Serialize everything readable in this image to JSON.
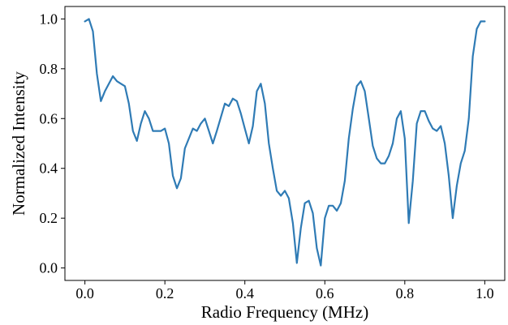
{
  "chart_data": {
    "type": "line",
    "xlabel": "Radio Frequency (MHz)",
    "ylabel": "Normalized Intensity",
    "xlim": [
      -0.05,
      1.05
    ],
    "ylim": [
      -0.05,
      1.05
    ],
    "x_ticks": [
      0.0,
      0.2,
      0.4,
      0.6,
      0.8,
      1.0
    ],
    "x_tick_labels": [
      "0.0",
      "0.2",
      "0.4",
      "0.6",
      "0.8",
      "1.0"
    ],
    "y_ticks": [
      0.0,
      0.2,
      0.4,
      0.6,
      0.8,
      1.0
    ],
    "y_tick_labels": [
      "0.0",
      "0.2",
      "0.4",
      "0.6",
      "0.8",
      "1.0"
    ],
    "grid": false,
    "legend": "none",
    "series": [
      {
        "color": "#2f7bb5",
        "x": [
          0.0,
          0.01,
          0.02,
          0.03,
          0.04,
          0.05,
          0.07,
          0.08,
          0.09,
          0.1,
          0.11,
          0.12,
          0.13,
          0.14,
          0.15,
          0.16,
          0.17,
          0.18,
          0.19,
          0.2,
          0.21,
          0.22,
          0.23,
          0.24,
          0.25,
          0.27,
          0.28,
          0.29,
          0.3,
          0.31,
          0.32,
          0.33,
          0.35,
          0.36,
          0.37,
          0.38,
          0.39,
          0.4,
          0.41,
          0.42,
          0.43,
          0.44,
          0.45,
          0.46,
          0.47,
          0.48,
          0.49,
          0.5,
          0.51,
          0.52,
          0.53,
          0.54,
          0.55,
          0.56,
          0.57,
          0.58,
          0.59,
          0.6,
          0.61,
          0.62,
          0.63,
          0.64,
          0.65,
          0.66,
          0.67,
          0.68,
          0.69,
          0.7,
          0.71,
          0.72,
          0.73,
          0.74,
          0.75,
          0.76,
          0.77,
          0.78,
          0.79,
          0.8,
          0.81,
          0.82,
          0.83,
          0.84,
          0.85,
          0.86,
          0.87,
          0.88,
          0.89,
          0.9,
          0.91,
          0.92,
          0.93,
          0.94,
          0.95,
          0.96,
          0.97,
          0.98,
          0.99,
          1.0
        ],
        "y": [
          0.99,
          1.0,
          0.95,
          0.78,
          0.67,
          0.71,
          0.77,
          0.75,
          0.74,
          0.73,
          0.66,
          0.55,
          0.51,
          0.58,
          0.63,
          0.6,
          0.55,
          0.55,
          0.55,
          0.56,
          0.5,
          0.37,
          0.32,
          0.36,
          0.48,
          0.56,
          0.55,
          0.58,
          0.6,
          0.55,
          0.5,
          0.55,
          0.66,
          0.65,
          0.68,
          0.67,
          0.62,
          0.56,
          0.5,
          0.57,
          0.71,
          0.74,
          0.66,
          0.5,
          0.4,
          0.31,
          0.29,
          0.31,
          0.28,
          0.18,
          0.02,
          0.16,
          0.26,
          0.27,
          0.22,
          0.08,
          0.01,
          0.2,
          0.25,
          0.25,
          0.23,
          0.26,
          0.35,
          0.52,
          0.64,
          0.73,
          0.75,
          0.71,
          0.6,
          0.49,
          0.44,
          0.42,
          0.42,
          0.45,
          0.5,
          0.6,
          0.63,
          0.52,
          0.18,
          0.35,
          0.58,
          0.63,
          0.63,
          0.59,
          0.56,
          0.55,
          0.57,
          0.5,
          0.37,
          0.2,
          0.33,
          0.42,
          0.47,
          0.6,
          0.85,
          0.96,
          0.99,
          0.99
        ]
      }
    ]
  }
}
